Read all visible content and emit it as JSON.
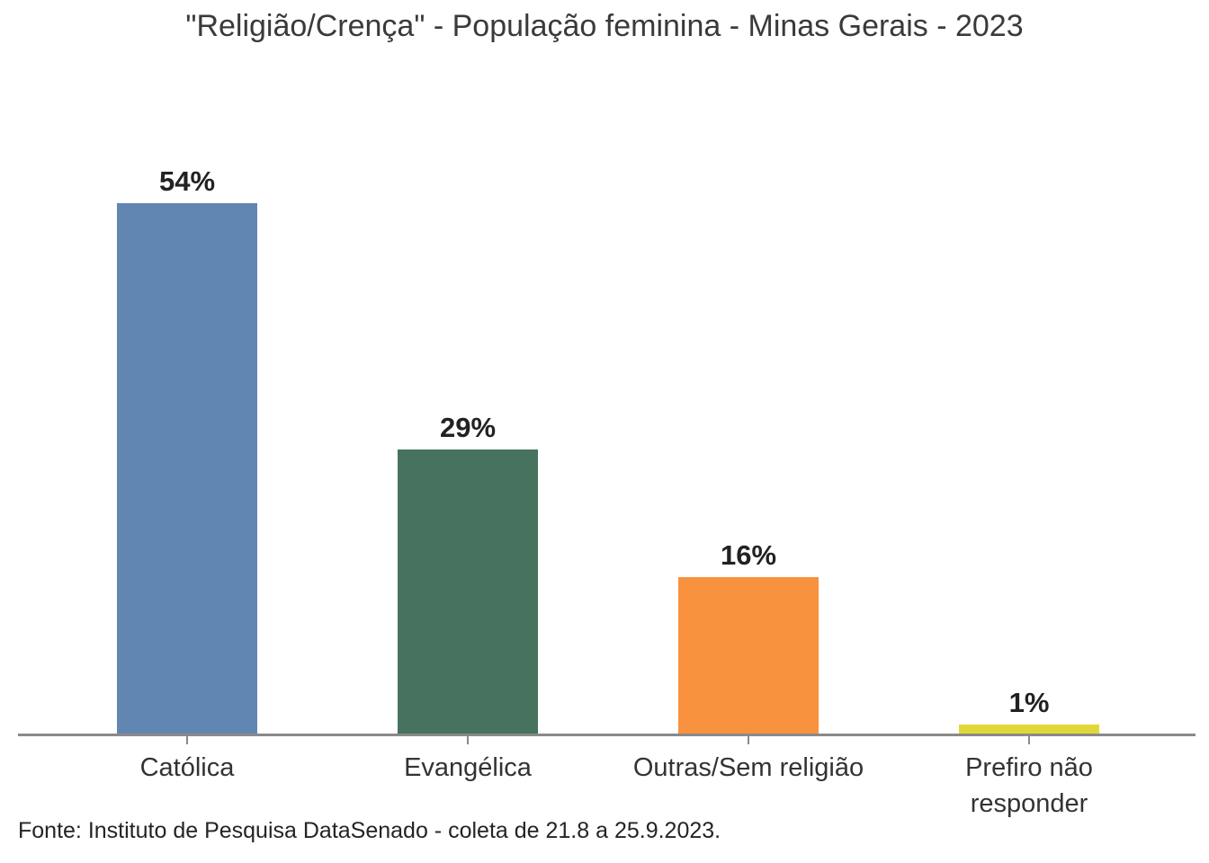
{
  "chart_data": {
    "type": "bar",
    "title": "\"Religião/Crença\" - População feminina - Minas Gerais - 2023",
    "categories": [
      "Católica",
      "Evangélica",
      "Outras/Sem religião",
      "Prefiro não responder"
    ],
    "categories_display": [
      "Católica",
      "Evangélica",
      "Outras/Sem religião",
      "Prefiro não\nresponder"
    ],
    "values": [
      54,
      29,
      16,
      1
    ],
    "value_labels": [
      "54%",
      "29%",
      "16%",
      "1%"
    ],
    "bar_colors": [
      "#6286b2",
      "#47735e",
      "#f8923e",
      "#e1d838"
    ],
    "xlabel": "",
    "ylabel": "",
    "ylim": [
      0,
      54
    ],
    "grid": false,
    "legend": false,
    "axis_color": "#8a8a8a",
    "source_note": "Fonte: Instituto de Pesquisa DataSenado - coleta de 21.8 a 25.9.2023."
  }
}
